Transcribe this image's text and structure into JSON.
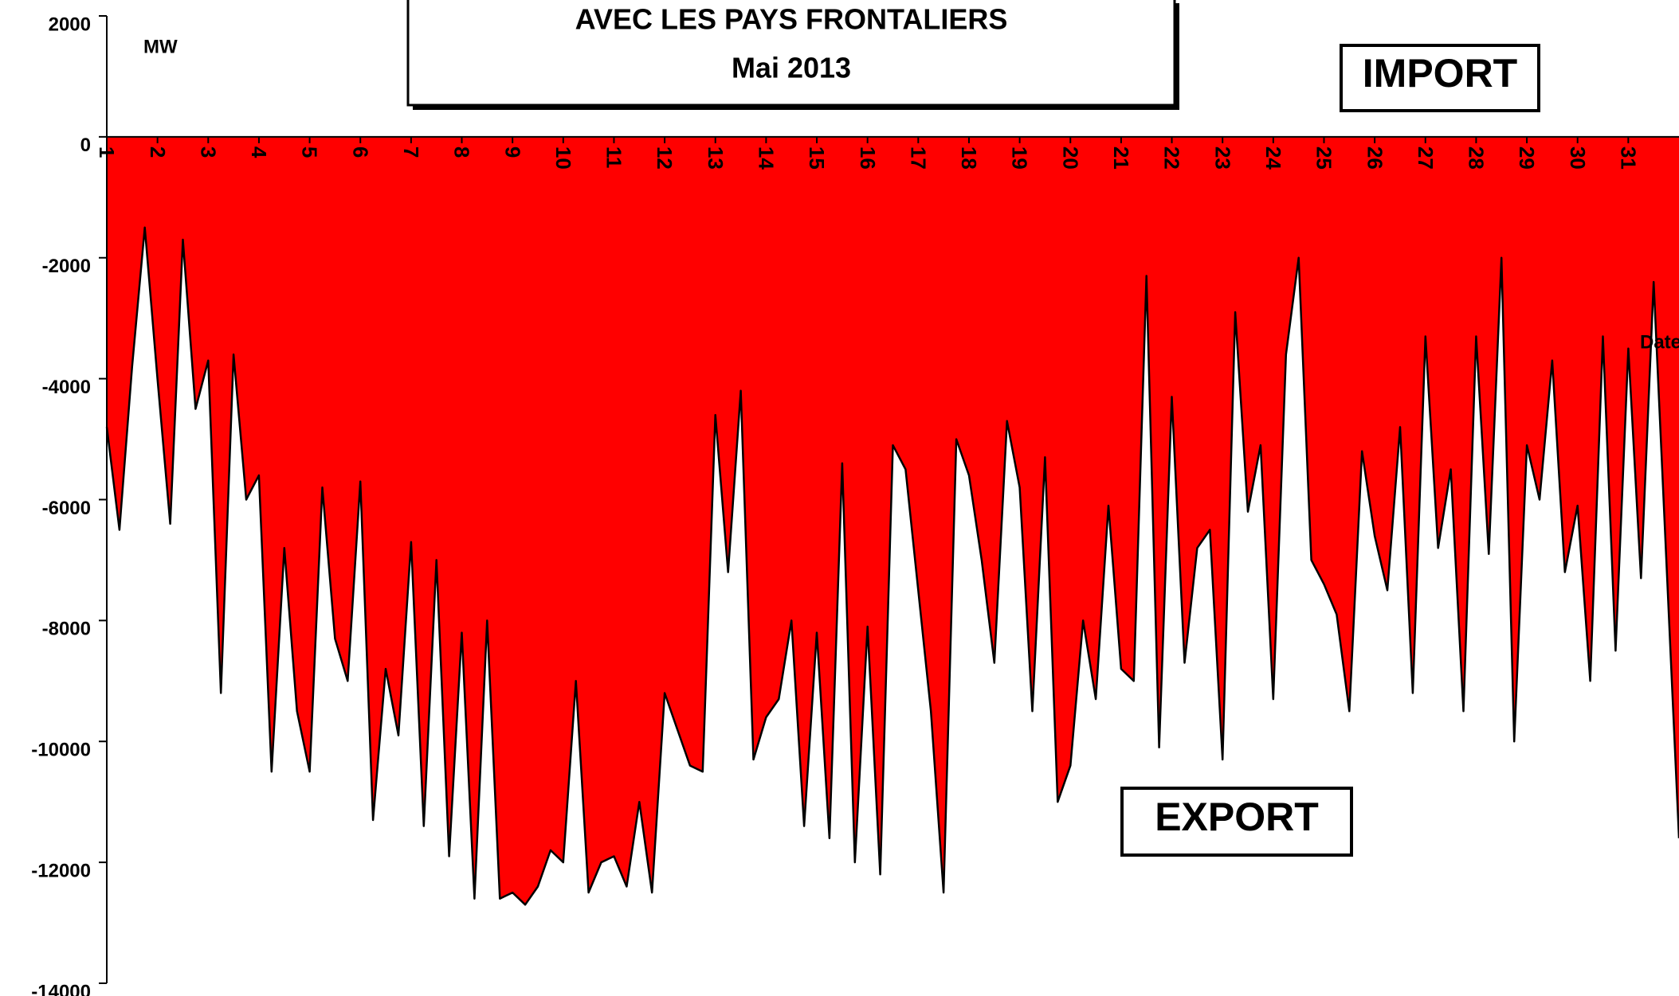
{
  "chart_data": {
    "type": "area",
    "title": "AVEC LES PAYS FRONTALIERS",
    "subtitle": "Mai 2013",
    "y_label": "MW",
    "x_label": "Date",
    "annotations": [
      "IMPORT",
      "EXPORT"
    ],
    "color": "#ff0000",
    "line_color": "#000000",
    "xlim": [
      1,
      32
    ],
    "xticks": [
      1,
      2,
      3,
      4,
      5,
      6,
      7,
      8,
      9,
      10,
      11,
      12,
      13,
      14,
      15,
      16,
      17,
      18,
      19,
      20,
      21,
      22,
      23,
      24,
      25,
      26,
      27,
      28,
      29,
      30,
      31
    ],
    "ylim": [
      -14000,
      2000
    ],
    "yticks": [
      2000,
      0,
      -2000,
      -4000,
      -6000,
      -8000,
      -10000,
      -12000,
      -14000
    ],
    "x": [
      1,
      1.25,
      1.5,
      1.75,
      2,
      2.25,
      2.5,
      2.75,
      3,
      3.25,
      3.5,
      3.75,
      4,
      4.25,
      4.5,
      4.75,
      5,
      5.25,
      5.5,
      5.75,
      6,
      6.25,
      6.5,
      6.75,
      7,
      7.25,
      7.5,
      7.75,
      8,
      8.25,
      8.5,
      8.75,
      9,
      9.25,
      9.5,
      9.75,
      10,
      10.25,
      10.5,
      10.75,
      11,
      11.25,
      11.5,
      11.75,
      12,
      12.25,
      12.5,
      12.75,
      13,
      13.25,
      13.5,
      13.75,
      14,
      14.25,
      14.5,
      14.75,
      15,
      15.25,
      15.5,
      15.75,
      16,
      16.25,
      16.5,
      16.75,
      17,
      17.25,
      17.5,
      17.75,
      18,
      18.25,
      18.5,
      18.75,
      19,
      19.25,
      19.5,
      19.75,
      20,
      20.25,
      20.5,
      20.75,
      21,
      21.25,
      21.5,
      21.75,
      22,
      22.25,
      22.5,
      22.75,
      23,
      23.25,
      23.5,
      23.75,
      24,
      24.25,
      24.5,
      24.75,
      25,
      25.25,
      25.5,
      25.75,
      26,
      26.25,
      26.5,
      26.75,
      27,
      27.25,
      27.5,
      27.75,
      28,
      28.25,
      28.5,
      28.75,
      29,
      29.25,
      29.5,
      29.75,
      30,
      30.25,
      30.5,
      30.75,
      31,
      31.25,
      31.5,
      31.75,
      32
    ],
    "values": [
      -4800,
      -6500,
      -3800,
      -1500,
      -4000,
      -6400,
      -1700,
      -4500,
      -3700,
      -9200,
      -3600,
      -6000,
      -5600,
      -10500,
      -6800,
      -9500,
      -10500,
      -5800,
      -8300,
      -9000,
      -5700,
      -11300,
      -8800,
      -9900,
      -6700,
      -11400,
      -7000,
      -11900,
      -8200,
      -12600,
      -8000,
      -12600,
      -12500,
      -12700,
      -12400,
      -11800,
      -12000,
      -9000,
      -12500,
      -12000,
      -11900,
      -12400,
      -11000,
      -12500,
      -9200,
      -9800,
      -10400,
      -10500,
      -4600,
      -7200,
      -4200,
      -10300,
      -9600,
      -9300,
      -8000,
      -11400,
      -8200,
      -11600,
      -5400,
      -12000,
      -8100,
      -12200,
      -5100,
      -5500,
      -7500,
      -9500,
      -12500,
      -5000,
      -5600,
      -7000,
      -8700,
      -4700,
      -5800,
      -9500,
      -5300,
      -11000,
      -10400,
      -8000,
      -9300,
      -6100,
      -8800,
      -9000,
      -2300,
      -10100,
      -4300,
      -8700,
      -6800,
      -6500,
      -10300,
      -2900,
      -6200,
      -5100,
      -9300,
      -3600,
      -2000,
      -7000,
      -7400,
      -7900,
      -9500,
      -5200,
      -6600,
      -7500,
      -4800,
      -9200,
      -3300,
      -6800,
      -5500,
      -9500,
      -3300,
      -6900,
      -2000,
      -10000,
      -5100,
      -6000,
      -3700,
      -7200,
      -6100,
      -9000,
      -3300,
      -8500,
      -3500,
      -7300,
      -2400,
      -7000,
      -11600
    ]
  }
}
